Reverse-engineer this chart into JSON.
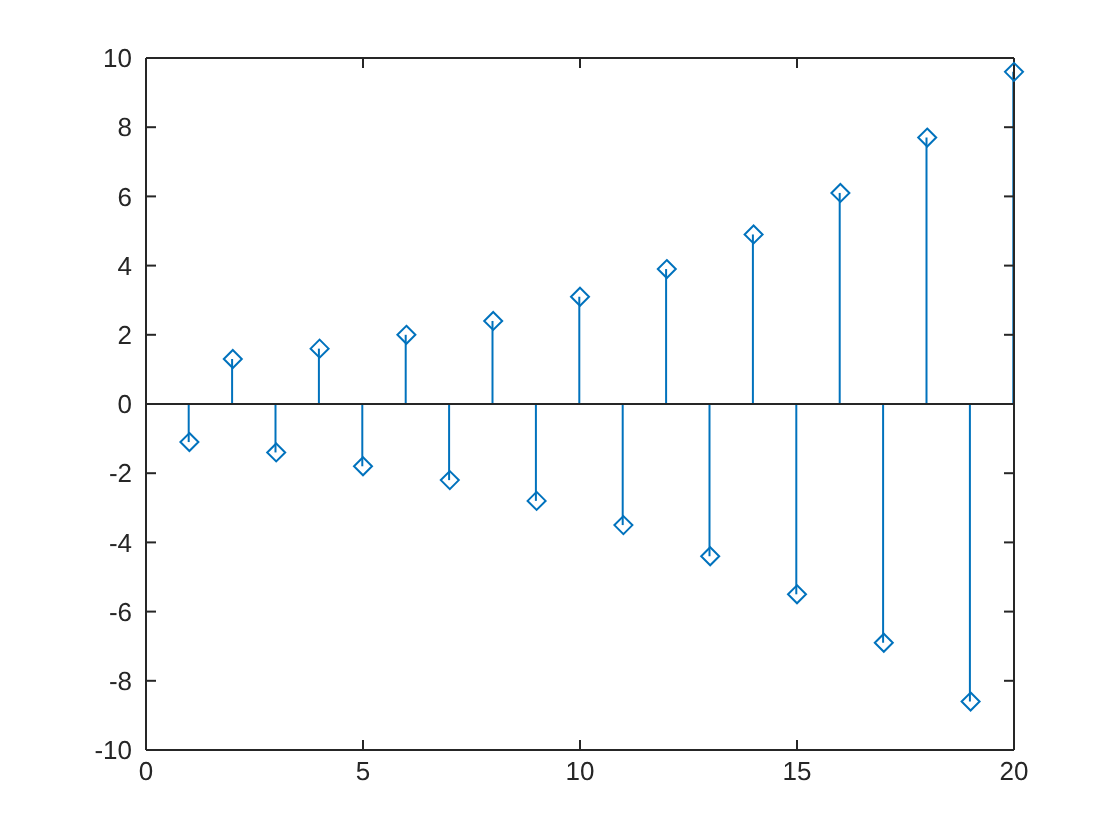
{
  "chart_data": {
    "type": "lollipop",
    "x": [
      1,
      2,
      3,
      4,
      5,
      6,
      7,
      8,
      9,
      10,
      11,
      12,
      13,
      14,
      15,
      16,
      17,
      18,
      19,
      20
    ],
    "values": [
      -1.1,
      1.3,
      -1.4,
      1.6,
      -1.8,
      2.0,
      -2.2,
      2.4,
      -2.8,
      3.1,
      -3.5,
      3.9,
      -4.4,
      4.9,
      -5.5,
      6.1,
      -6.9,
      7.7,
      -8.6,
      9.6
    ],
    "color": "#0072bd",
    "marker": "diamond",
    "xlim": [
      0,
      20
    ],
    "xticks": [
      0,
      5,
      10,
      15,
      20
    ],
    "ylim": [
      -10,
      10
    ],
    "yticks": [
      -10,
      -8,
      -6,
      -4,
      -2,
      0,
      2,
      4,
      6,
      8,
      10
    ],
    "ref_lines": [
      {
        "axis": "y",
        "value": 0,
        "color": "#262626"
      }
    ]
  }
}
